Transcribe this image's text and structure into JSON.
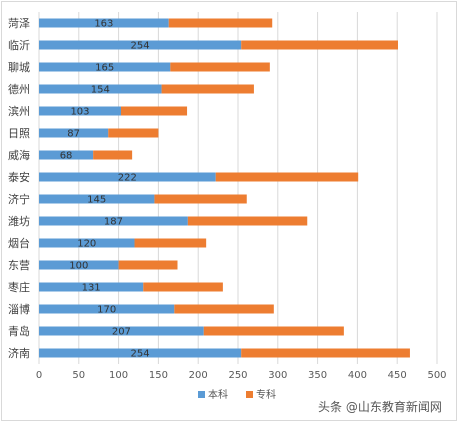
{
  "chart_data": {
    "type": "bar",
    "orientation": "horizontal",
    "stacked": true,
    "categories": [
      "菏泽",
      "临沂",
      "聊城",
      "德州",
      "滨州",
      "日照",
      "威海",
      "泰安",
      "济宁",
      "潍坊",
      "烟台",
      "东营",
      "枣庄",
      "淄博",
      "青岛",
      "济南"
    ],
    "series": [
      {
        "name": "本科",
        "color": "#5b9bd5",
        "values": [
          163,
          254,
          165,
          154,
          103,
          87,
          68,
          222,
          145,
          187,
          120,
          100,
          131,
          170,
          207,
          254
        ]
      },
      {
        "name": "专科",
        "color": "#ed7d31",
        "values": [
          130,
          197,
          125,
          116,
          83,
          63,
          49,
          179,
          116,
          150,
          90,
          74,
          100,
          125,
          176,
          212
        ]
      }
    ],
    "data_labels_series": "本科",
    "xlim": [
      0,
      500
    ],
    "xticks": [
      0,
      50,
      100,
      150,
      200,
      250,
      300,
      350,
      400,
      450,
      500
    ],
    "grid": "vertical",
    "legend_position": "bottom"
  },
  "watermark": "头条 @山东教育新闻网"
}
